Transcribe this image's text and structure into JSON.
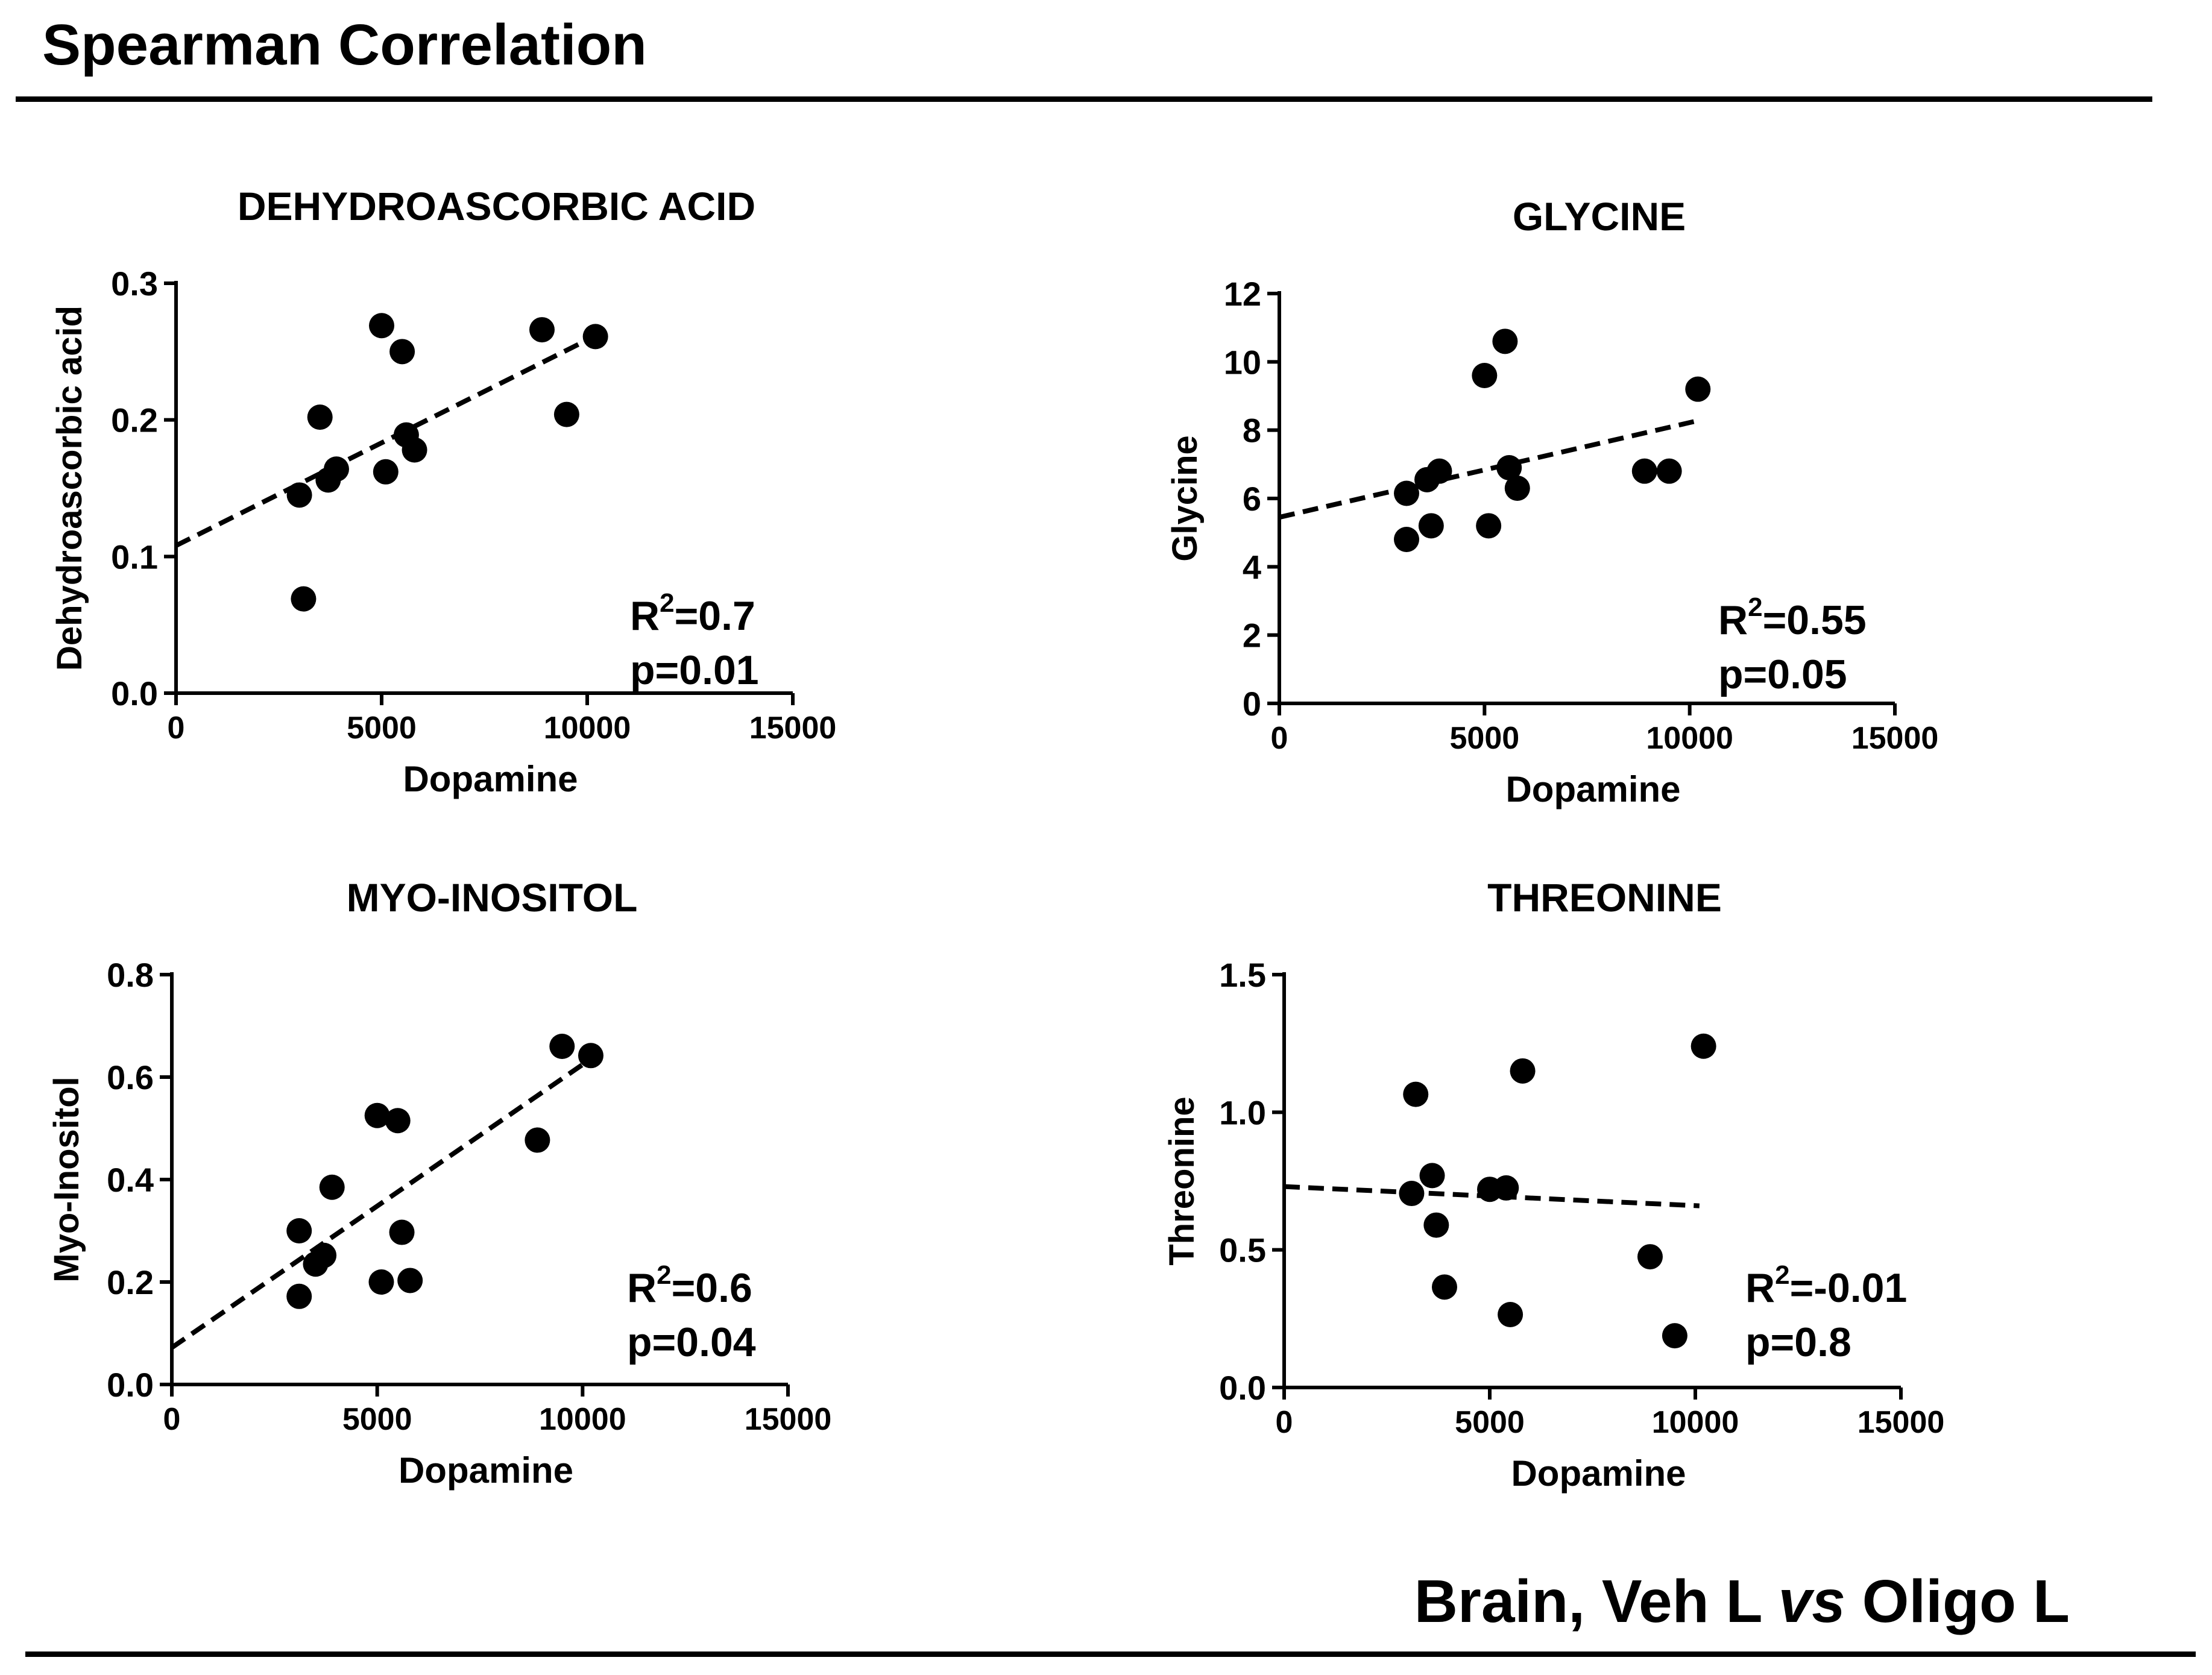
{
  "heading": "Spearman Correlation",
  "footer": {
    "prefix": "Brain, Veh L ",
    "italic": "vs",
    "suffix": " Oligo L"
  },
  "chart_data": [
    {
      "type": "scatter",
      "title": "DEHYDROASCORBIC ACID",
      "xlabel": "Dopamine",
      "ylabel": "Dehydroascorbic acid",
      "xlim": [
        0,
        15000
      ],
      "ylim": [
        0,
        0.3
      ],
      "xticks": [
        0,
        5000,
        10000,
        15000
      ],
      "yticks": [
        0.0,
        0.1,
        0.2,
        0.3
      ],
      "xtick_labels": [
        "0",
        "5000",
        "10000",
        "15000"
      ],
      "ytick_labels": [
        "0.0",
        "0.1",
        "0.2",
        "0.3"
      ],
      "points": [
        {
          "x": 3000,
          "y": 0.145
        },
        {
          "x": 3100,
          "y": 0.069
        },
        {
          "x": 3500,
          "y": 0.202
        },
        {
          "x": 3700,
          "y": 0.156
        },
        {
          "x": 3900,
          "y": 0.164
        },
        {
          "x": 5000,
          "y": 0.269
        },
        {
          "x": 5100,
          "y": 0.162
        },
        {
          "x": 5500,
          "y": 0.25
        },
        {
          "x": 5600,
          "y": 0.189
        },
        {
          "x": 5800,
          "y": 0.178
        },
        {
          "x": 8900,
          "y": 0.266
        },
        {
          "x": 9500,
          "y": 0.204
        },
        {
          "x": 10200,
          "y": 0.261
        }
      ],
      "fit": {
        "x": [
          0,
          10100
        ],
        "y": [
          0.108,
          0.26
        ]
      },
      "annotation": {
        "r2_prefix": "R",
        "r2_sup": "2",
        "r2_value": "=0.7",
        "p": "p=0.01"
      }
    },
    {
      "type": "scatter",
      "title": "GLYCINE",
      "xlabel": "Dopamine",
      "ylabel": "Glycine",
      "xlim": [
        0,
        15000
      ],
      "ylim": [
        0,
        12
      ],
      "xticks": [
        0,
        5000,
        10000,
        15000
      ],
      "yticks": [
        0,
        2,
        4,
        6,
        8,
        10,
        12
      ],
      "xtick_labels": [
        "0",
        "5000",
        "10000",
        "15000"
      ],
      "ytick_labels": [
        "0",
        "2",
        "4",
        "6",
        "8",
        "10",
        "12"
      ],
      "points": [
        {
          "x": 3100,
          "y": 6.15
        },
        {
          "x": 3100,
          "y": 4.8
        },
        {
          "x": 3600,
          "y": 6.55
        },
        {
          "x": 3700,
          "y": 5.2
        },
        {
          "x": 3900,
          "y": 6.8
        },
        {
          "x": 5000,
          "y": 9.6
        },
        {
          "x": 5100,
          "y": 5.2
        },
        {
          "x": 5500,
          "y": 10.6
        },
        {
          "x": 5600,
          "y": 6.9
        },
        {
          "x": 5800,
          "y": 6.3
        },
        {
          "x": 8900,
          "y": 6.8
        },
        {
          "x": 9500,
          "y": 6.8
        },
        {
          "x": 10200,
          "y": 9.2
        }
      ],
      "fit": {
        "x": [
          0,
          10100
        ],
        "y": [
          5.45,
          8.25
        ]
      },
      "annotation": {
        "r2_prefix": "R",
        "r2_sup": "2",
        "r2_value": "=0.55",
        "p": "p=0.05"
      }
    },
    {
      "type": "scatter",
      "title": "MYO-INOSITOL",
      "xlabel": "Dopamine",
      "ylabel": "Myo-Inositol",
      "xlim": [
        0,
        15000
      ],
      "ylim": [
        0,
        0.8
      ],
      "xticks": [
        0,
        5000,
        10000,
        15000
      ],
      "yticks": [
        0.0,
        0.2,
        0.4,
        0.6,
        0.8
      ],
      "xtick_labels": [
        "0",
        "5000",
        "10000",
        "15000"
      ],
      "ytick_labels": [
        "0.0",
        "0.2",
        "0.4",
        "0.6",
        "0.8"
      ],
      "points": [
        {
          "x": 3100,
          "y": 0.3
        },
        {
          "x": 3100,
          "y": 0.172
        },
        {
          "x": 3500,
          "y": 0.235
        },
        {
          "x": 3700,
          "y": 0.252
        },
        {
          "x": 3900,
          "y": 0.385
        },
        {
          "x": 5000,
          "y": 0.525
        },
        {
          "x": 5100,
          "y": 0.2
        },
        {
          "x": 5500,
          "y": 0.515
        },
        {
          "x": 5600,
          "y": 0.297
        },
        {
          "x": 5800,
          "y": 0.203
        },
        {
          "x": 8900,
          "y": 0.477
        },
        {
          "x": 9500,
          "y": 0.66
        },
        {
          "x": 10200,
          "y": 0.642
        }
      ],
      "fit": {
        "x": [
          0,
          10100
        ],
        "y": [
          0.072,
          0.63
        ]
      },
      "annotation": {
        "r2_prefix": "R",
        "r2_sup": "2",
        "r2_value": "=0.6",
        "p": "p=0.04"
      }
    },
    {
      "type": "scatter",
      "title": "THREONINE",
      "xlabel": "Dopamine",
      "ylabel": "Threonine",
      "xlim": [
        0,
        15000
      ],
      "ylim": [
        0,
        1.5
      ],
      "xticks": [
        0,
        5000,
        10000,
        15000
      ],
      "yticks": [
        0.0,
        0.5,
        1.0,
        1.5
      ],
      "xtick_labels": [
        "0",
        "5000",
        "10000",
        "15000"
      ],
      "ytick_labels": [
        "0.0",
        "0.5",
        "1.0",
        "1.5"
      ],
      "points": [
        {
          "x": 3100,
          "y": 0.705
        },
        {
          "x": 3200,
          "y": 1.065
        },
        {
          "x": 3600,
          "y": 0.77
        },
        {
          "x": 3700,
          "y": 0.59
        },
        {
          "x": 3900,
          "y": 0.365
        },
        {
          "x": 5000,
          "y": 0.72
        },
        {
          "x": 5400,
          "y": 0.725
        },
        {
          "x": 5500,
          "y": 0.265
        },
        {
          "x": 5800,
          "y": 1.15
        },
        {
          "x": 8900,
          "y": 0.475
        },
        {
          "x": 9500,
          "y": 0.188
        },
        {
          "x": 10200,
          "y": 1.24
        }
      ],
      "fit": {
        "x": [
          0,
          10100
        ],
        "y": [
          0.73,
          0.66
        ]
      },
      "annotation": {
        "r2_prefix": "R",
        "r2_sup": "2",
        "r2_value": "=-0.01",
        "p": "p=0.8"
      }
    }
  ]
}
